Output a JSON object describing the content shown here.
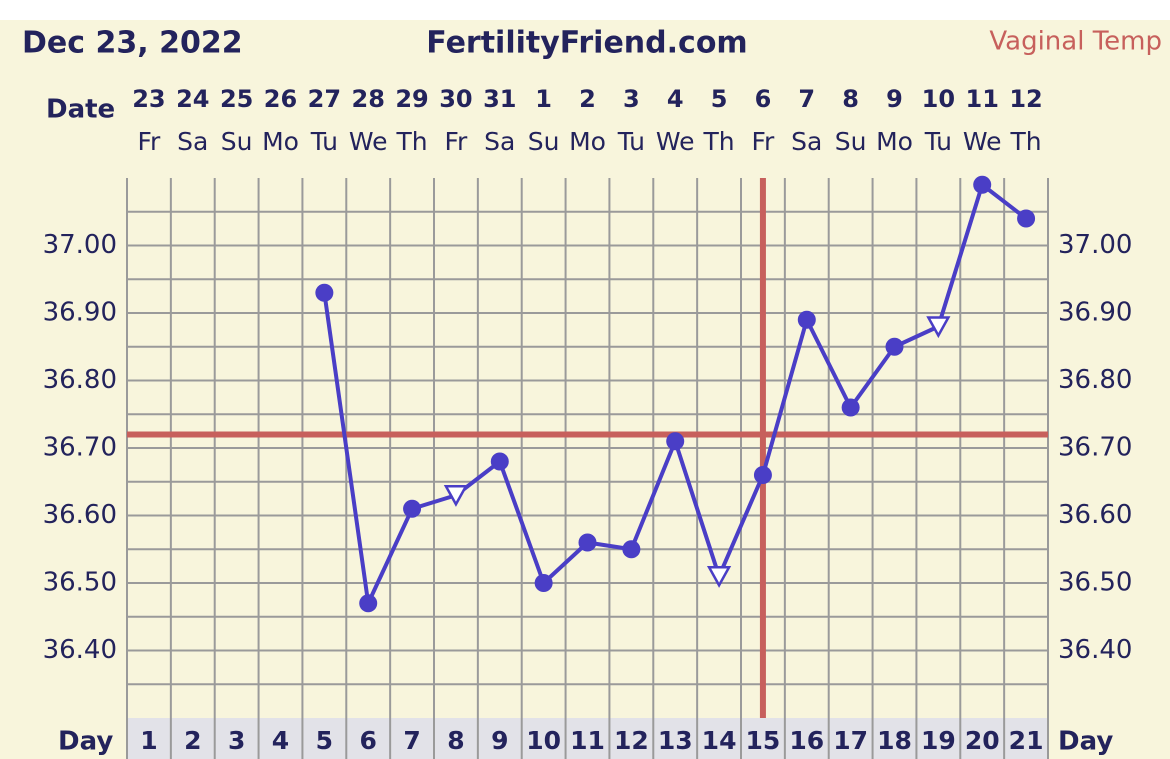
{
  "chart_data": {
    "type": "line",
    "date_label": "Dec 23, 2022",
    "site": "FertilityFriend.com",
    "temp_method": "Vaginal Temp",
    "date_row_label": "Date",
    "day_row_label": "Day",
    "categories": [
      "1",
      "2",
      "3",
      "4",
      "5",
      "6",
      "7",
      "8",
      "9",
      "10",
      "11",
      "12",
      "13",
      "14",
      "15",
      "16",
      "17",
      "18",
      "19",
      "20",
      "21"
    ],
    "dates": [
      "23",
      "24",
      "25",
      "26",
      "27",
      "28",
      "29",
      "30",
      "31",
      "1",
      "2",
      "3",
      "4",
      "5",
      "6",
      "7",
      "8",
      "9",
      "10",
      "11",
      "12"
    ],
    "weekdays": [
      "Fr",
      "Sa",
      "Su",
      "Mo",
      "Tu",
      "We",
      "Th",
      "Fr",
      "Sa",
      "Su",
      "Mo",
      "Tu",
      "We",
      "Th",
      "Fr",
      "Sa",
      "Su",
      "Mo",
      "Tu",
      "We",
      "Th"
    ],
    "series": [
      {
        "name": "Temperature",
        "color": "#4a3ec6",
        "values": [
          null,
          null,
          null,
          null,
          36.93,
          36.47,
          36.61,
          36.63,
          36.68,
          36.5,
          36.56,
          36.55,
          36.71,
          36.51,
          36.66,
          36.89,
          36.76,
          36.85,
          36.88,
          37.09,
          37.04
        ],
        "markers": [
          null,
          null,
          null,
          null,
          "dot",
          "dot",
          "dot",
          "triangle",
          "dot",
          "dot",
          "dot",
          "dot",
          "dot",
          "triangle",
          "dot",
          "dot",
          "dot",
          "dot",
          "triangle",
          "dot",
          "dot"
        ]
      }
    ],
    "ylim": [
      36.3,
      37.1
    ],
    "yticks": [
      {
        "value": 36.4,
        "label": "36.40"
      },
      {
        "value": 36.5,
        "label": "36.50"
      },
      {
        "value": 36.6,
        "label": "36.60"
      },
      {
        "value": 36.7,
        "label": "36.70"
      },
      {
        "value": 36.8,
        "label": "36.80"
      },
      {
        "value": 36.9,
        "label": "36.90"
      },
      {
        "value": 37.0,
        "label": "37.00"
      }
    ],
    "minor_yticks": [
      36.35,
      36.45,
      36.55,
      36.65,
      36.75,
      36.85,
      36.95,
      37.05
    ],
    "grid": true,
    "coverline": 36.72,
    "ovulation_day": 15,
    "marker_line_color": "#c7605c"
  }
}
